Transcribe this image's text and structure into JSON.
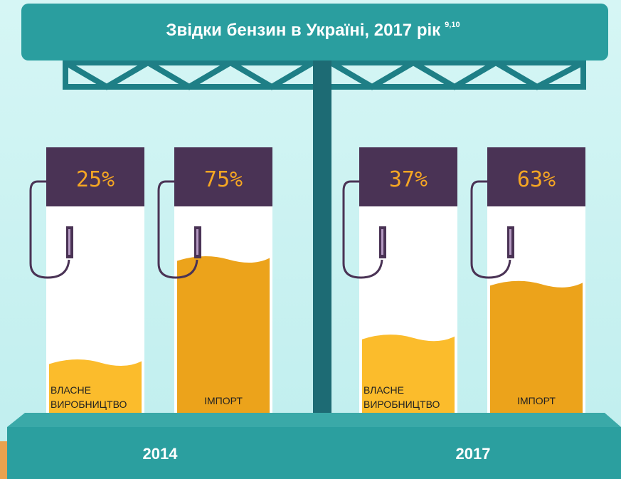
{
  "chart_data": {
    "type": "pictograph",
    "title": "Звідки бензин в Україні, 2017 рік",
    "title_note": "9,10",
    "categories": [
      "2014",
      "2017"
    ],
    "series": [
      {
        "name": "ВЛАСНЕ ВИРОБНИЦТВО",
        "color": "#fbbc2c",
        "values": [
          25,
          37
        ],
        "value_labels": [
          "25%",
          "37%"
        ]
      },
      {
        "name": "ІМПОРТ",
        "color": "#eca31b",
        "values": [
          75,
          63
        ],
        "value_labels": [
          "75%",
          "63%"
        ]
      }
    ]
  }
}
